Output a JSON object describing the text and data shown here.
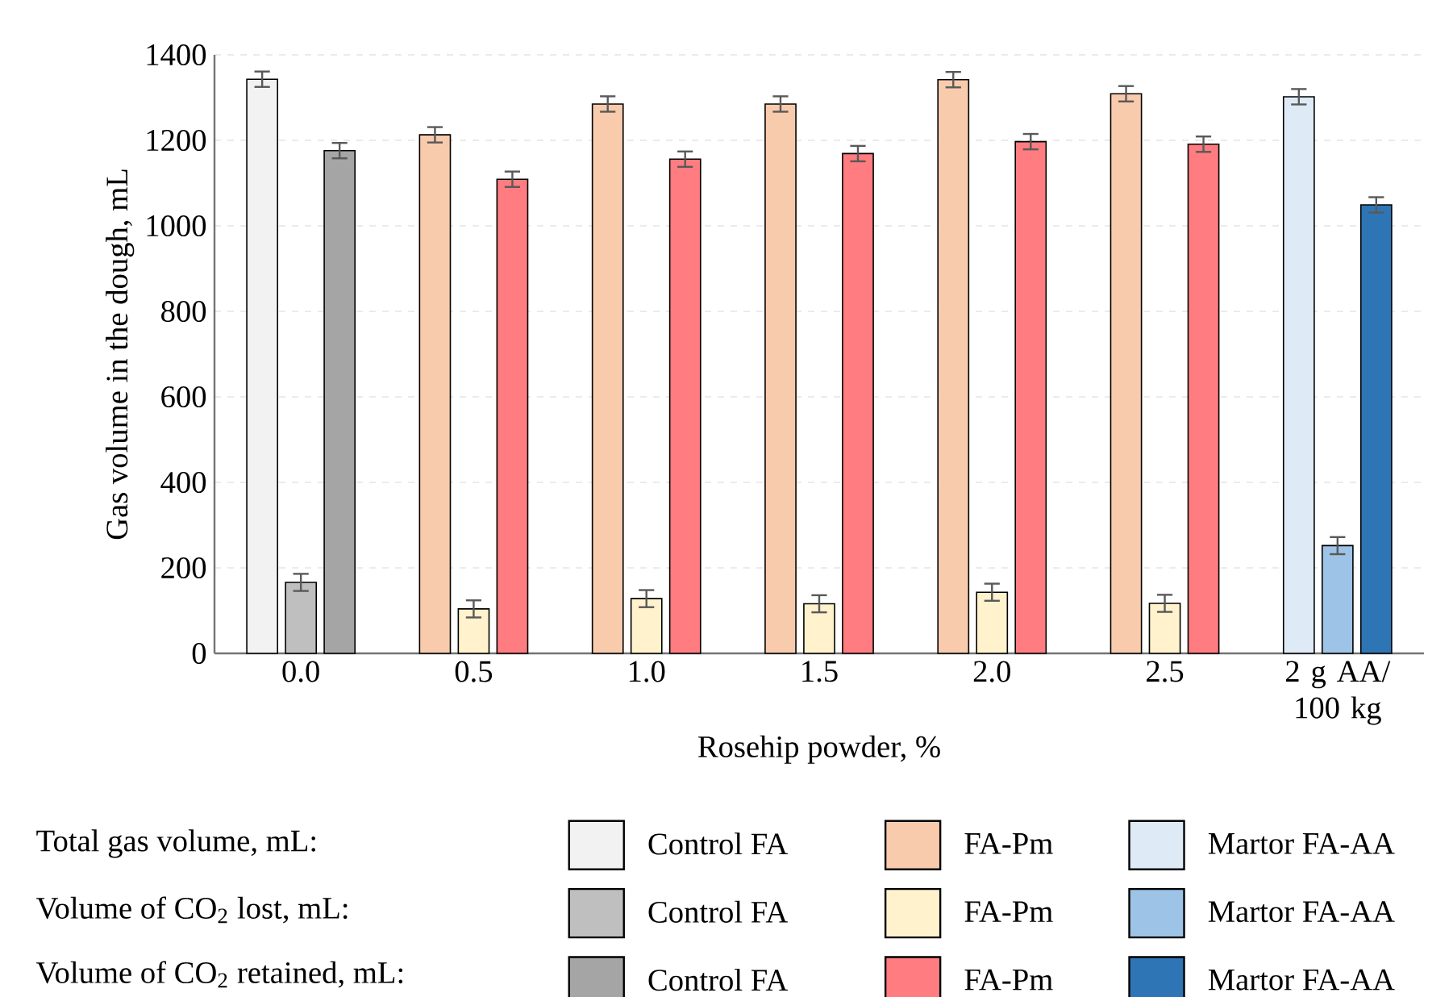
{
  "chart_data": {
    "type": "bar",
    "xlabel": "Rosehip powder, %",
    "ylabel": "Gas volume in the dough, mL",
    "categories": [
      "0.0",
      "0.5",
      "1.0",
      "1.5",
      "2.0",
      "2.5",
      "2 g AA/ 100 kg"
    ],
    "series": [
      {
        "name": "Control FA",
        "color": "#f2f2f2",
        "values": [
          1343,
          null,
          null,
          null,
          null,
          null,
          null
        ],
        "errors": [
          18,
          null,
          null,
          null,
          null,
          null,
          null
        ]
      },
      {
        "name": "FA-Pm",
        "color": "#f8cbad",
        "values": [
          null,
          1213,
          1285,
          1285,
          1342,
          1309,
          null
        ],
        "errors": [
          null,
          18,
          18,
          18,
          18,
          18,
          null
        ]
      },
      {
        "name": "Martor FA-AA",
        "color": "#deebf7",
        "values": [
          null,
          null,
          null,
          null,
          null,
          null,
          1302
        ],
        "errors": [
          null,
          null,
          null,
          null,
          null,
          null,
          18
        ]
      },
      {
        "name": "Control FA",
        "color": "#bfbfbf",
        "values": [
          166,
          null,
          null,
          null,
          null,
          null,
          null
        ],
        "errors": [
          20,
          null,
          null,
          null,
          null,
          null,
          null
        ]
      },
      {
        "name": "FA-Pm",
        "color": "#fff2cc",
        "values": [
          null,
          104,
          128,
          116,
          143,
          117,
          null
        ],
        "errors": [
          null,
          20,
          20,
          20,
          20,
          20,
          null
        ]
      },
      {
        "name": "Martor FA-AA",
        "color": "#9dc3e6",
        "values": [
          null,
          null,
          null,
          null,
          null,
          null,
          252
        ],
        "errors": [
          null,
          null,
          null,
          null,
          null,
          null,
          20
        ]
      },
      {
        "name": "Control FA",
        "color": "#a5a5a5",
        "values": [
          1176,
          null,
          null,
          null,
          null,
          null,
          null
        ],
        "errors": [
          18,
          null,
          null,
          null,
          null,
          null,
          null
        ]
      },
      {
        "name": "FA-Pm",
        "color": "#ff7c80",
        "values": [
          null,
          1109,
          1156,
          1169,
          1197,
          1191,
          null
        ],
        "errors": [
          null,
          18,
          18,
          18,
          18,
          18,
          null
        ]
      },
      {
        "name": "Martor FA-AA",
        "color": "#2e75b6",
        "values": [
          null,
          null,
          null,
          null,
          null,
          null,
          1049
        ],
        "errors": [
          null,
          null,
          null,
          null,
          null,
          null,
          18
        ]
      }
    ],
    "annotations": [
      "Total gas volume, mL:",
      "Volume of CO$_{2}$ lost, mL:",
      "Volume of  CO$_{2}$ retained, mL:"
    ],
    "ylim": [
      0,
      1400
    ],
    "yticks": [
      0,
      200,
      400,
      600,
      800,
      1000,
      1200,
      1400
    ],
    "grid": "y",
    "legend": "bottom"
  }
}
